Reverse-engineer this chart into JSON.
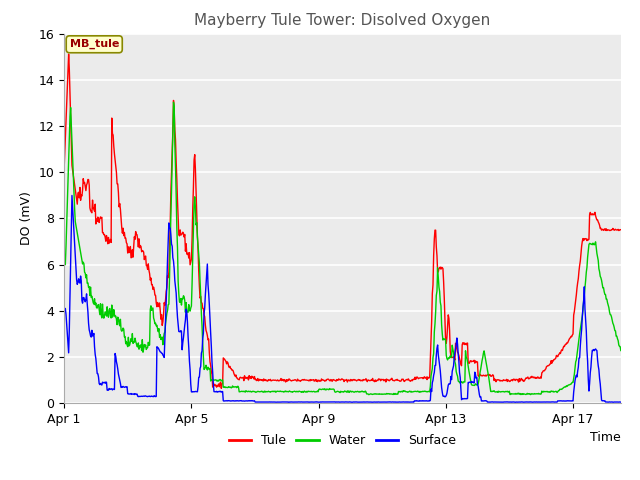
{
  "title": "Mayberry Tule Tower: Disolved Oxygen",
  "ylabel": "DO (mV)",
  "xlabel": "Time",
  "ylim": [
    0,
    16
  ],
  "yticks": [
    0,
    2,
    4,
    6,
    8,
    10,
    12,
    14,
    16
  ],
  "xtick_labels": [
    "Apr 1",
    "Apr 5",
    "Apr 9",
    "Apr 13",
    "Apr 17"
  ],
  "xtick_pos": [
    0,
    4,
    8,
    12,
    16
  ],
  "xlim": [
    0,
    17.5
  ],
  "bg_color": "#ffffff",
  "plot_bg_color": "#ebebeb",
  "legend_label": "MB_tule",
  "series_labels": [
    "Tule",
    "Water",
    "Surface"
  ],
  "series_colors": [
    "#ff0000",
    "#00cc00",
    "#0000ff"
  ],
  "line_width": 1.0,
  "title_fontsize": 11,
  "axis_fontsize": 9,
  "label_fontsize": 9
}
